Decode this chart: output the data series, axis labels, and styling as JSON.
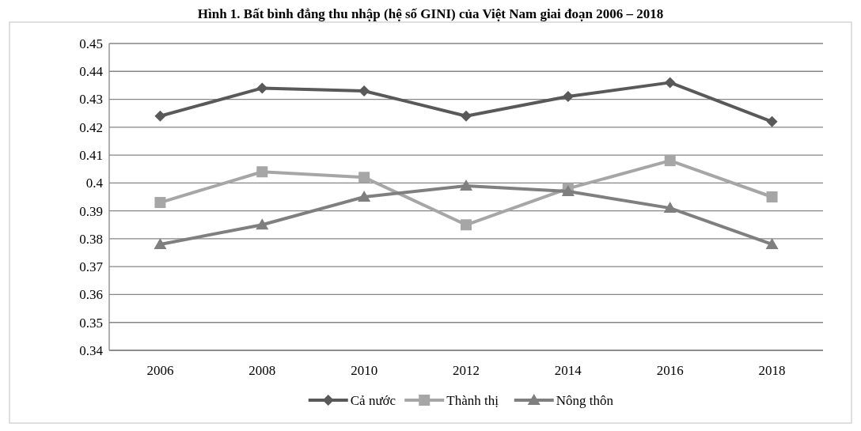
{
  "chart_data": {
    "type": "line",
    "title": "Hình 1. Bất bình đẳng thu nhập (hệ số GINI) của Việt Nam giai đoạn 2006 – 2018",
    "categories": [
      "2006",
      "2008",
      "2010",
      "2012",
      "2014",
      "2016",
      "2018"
    ],
    "series": [
      {
        "name": "Cả nước",
        "color": "#595959",
        "marker": "diamond",
        "values": [
          0.424,
          0.434,
          0.433,
          0.424,
          0.431,
          0.436,
          0.422
        ]
      },
      {
        "name": "Thành thị",
        "color": "#a6a6a6",
        "marker": "square",
        "values": [
          0.393,
          0.404,
          0.402,
          0.385,
          0.398,
          0.408,
          0.395
        ]
      },
      {
        "name": "Nông thôn",
        "color": "#7f7f7f",
        "marker": "triangle",
        "values": [
          0.378,
          0.385,
          0.395,
          0.399,
          0.397,
          0.391,
          0.378
        ]
      }
    ],
    "ylim": [
      0.34,
      0.45
    ],
    "yticks": [
      0.34,
      0.35,
      0.36,
      0.37,
      0.38,
      0.39,
      0.4,
      0.41,
      0.42,
      0.43,
      0.44,
      0.45
    ],
    "grid": "y",
    "legend": "bottom",
    "line_style": "solid"
  }
}
